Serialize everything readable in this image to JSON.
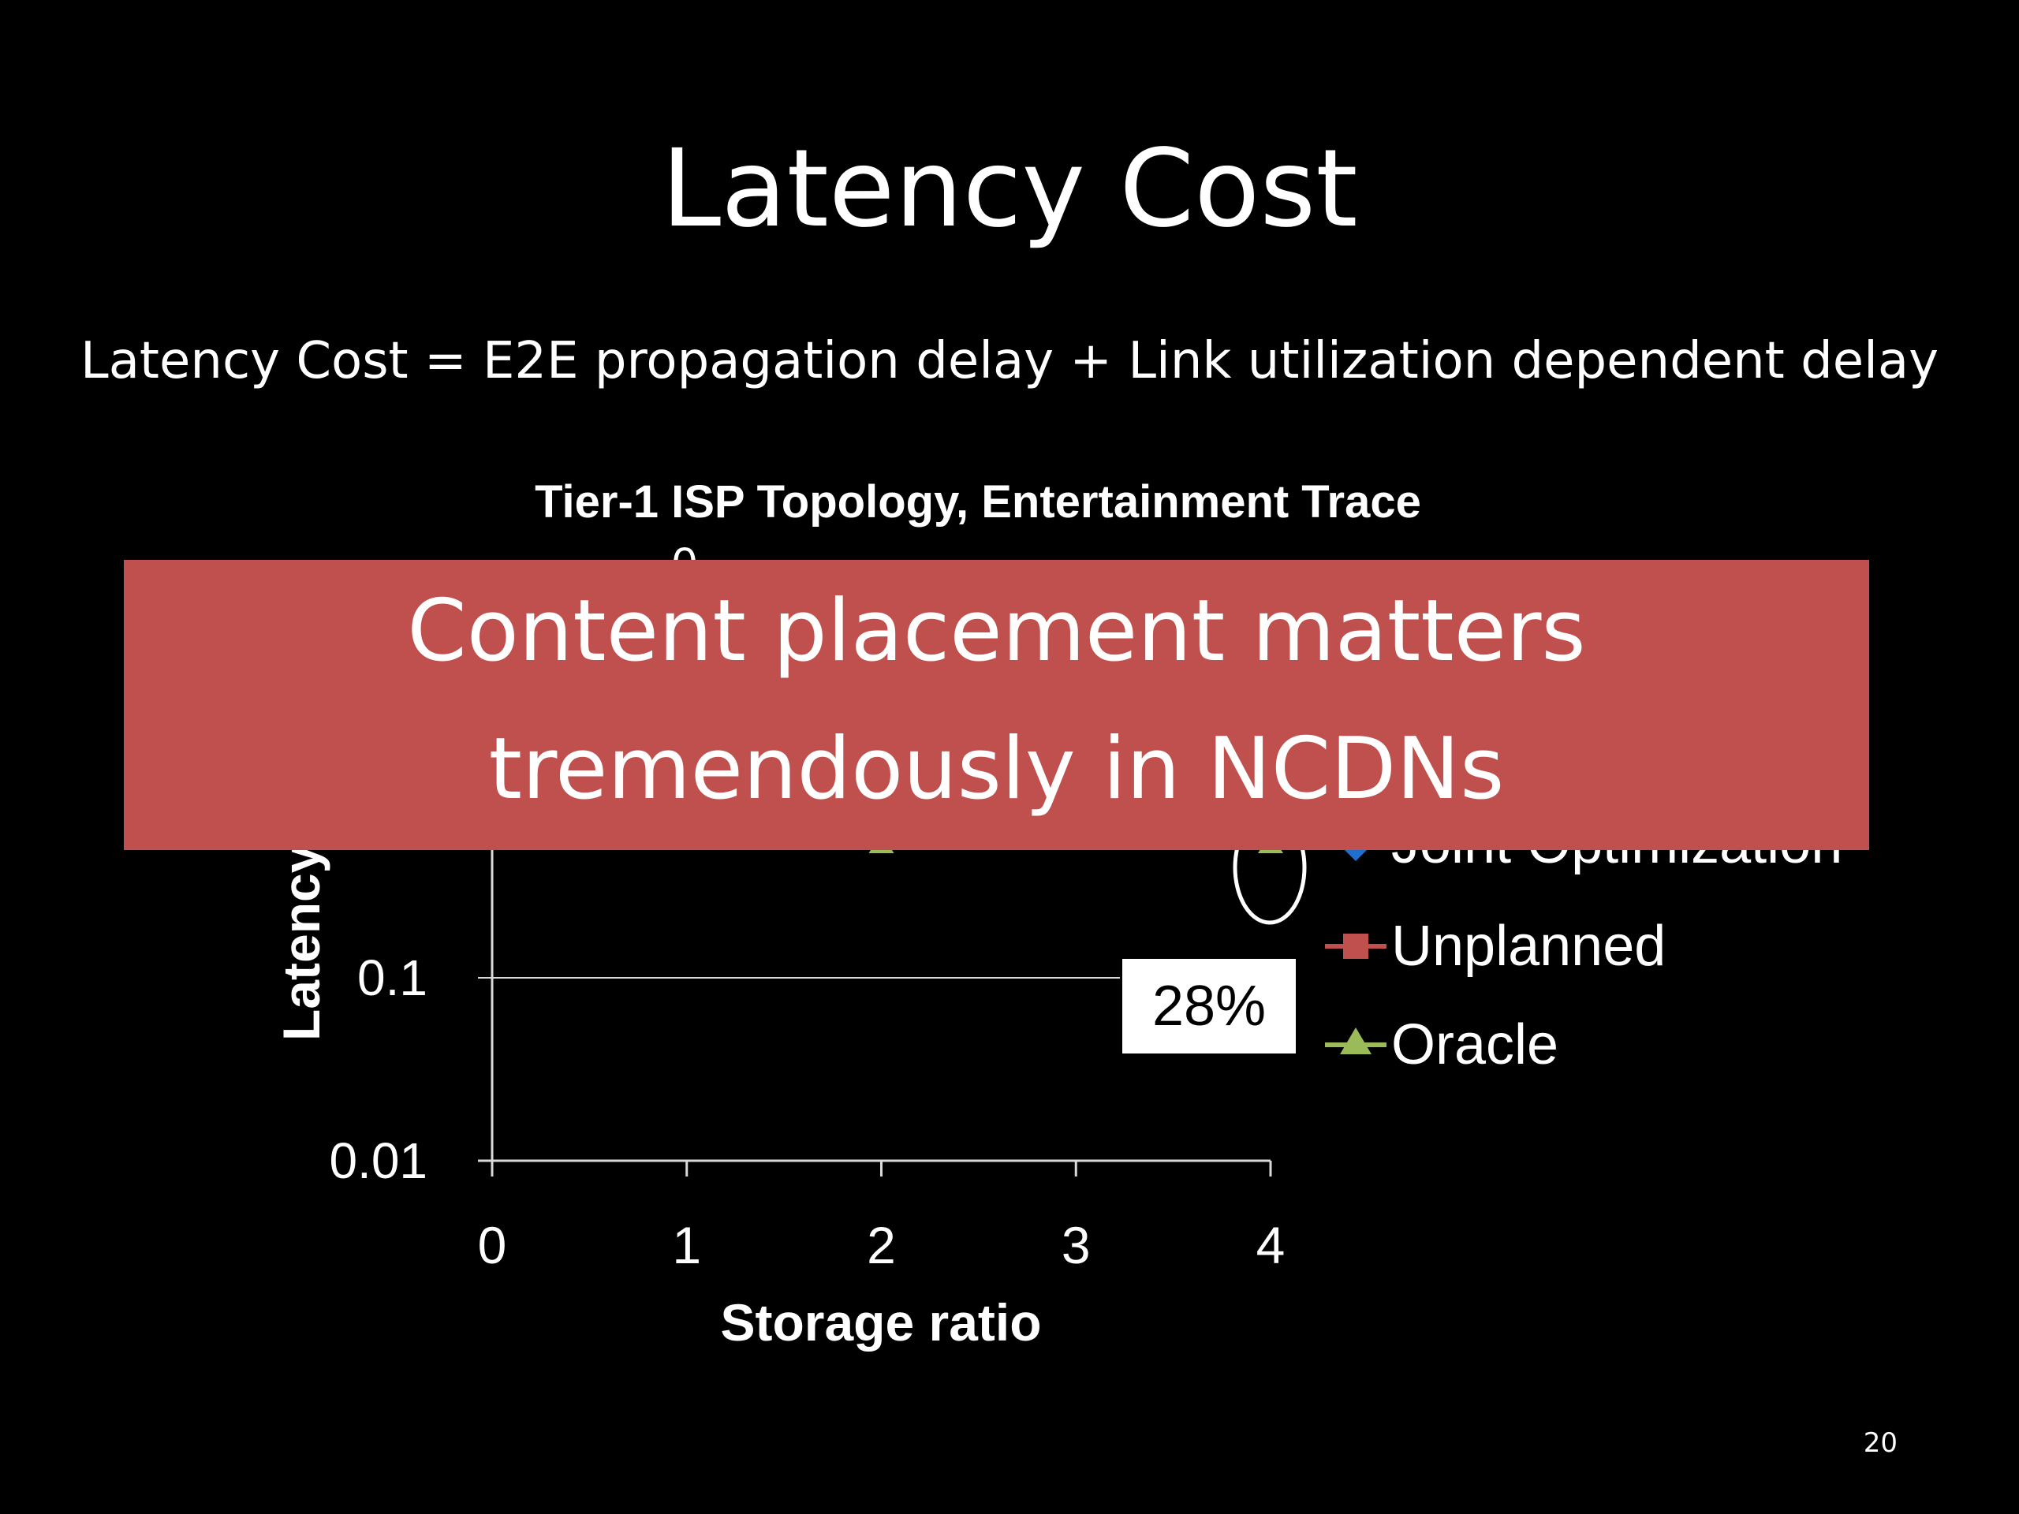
{
  "slide": {
    "title": "Latency Cost",
    "subtitle": "Latency Cost = E2E propagation delay +  Link utilization dependent delay",
    "page_number": "20",
    "banner": {
      "line1": "Content placement matters",
      "line2": "tremendously in NCDNs",
      "color": "#c0504d"
    }
  },
  "chart_data": {
    "type": "line",
    "title": "Tier-1 ISP Topology, Entertainment Trace",
    "xlabel": "Storage ratio",
    "ylabel": "Latency",
    "xlim": [
      0,
      4
    ],
    "x_ticks": [
      "0",
      "1",
      "2",
      "3",
      "4"
    ],
    "y_scale": "log",
    "y_ticks": [
      "0.1",
      "0.01"
    ],
    "grid": "horizontal",
    "legend_position": "right",
    "series": [
      {
        "name": "Joint Optimization",
        "color": "#1f6fd0",
        "marker": "diamond"
      },
      {
        "name": "Unplanned",
        "color": "#c0504d",
        "marker": "square"
      },
      {
        "name": "Oracle",
        "color": "#9bbb59",
        "marker": "triangle"
      }
    ],
    "annotation": "28%",
    "axis_color": "#d9d9d9"
  }
}
